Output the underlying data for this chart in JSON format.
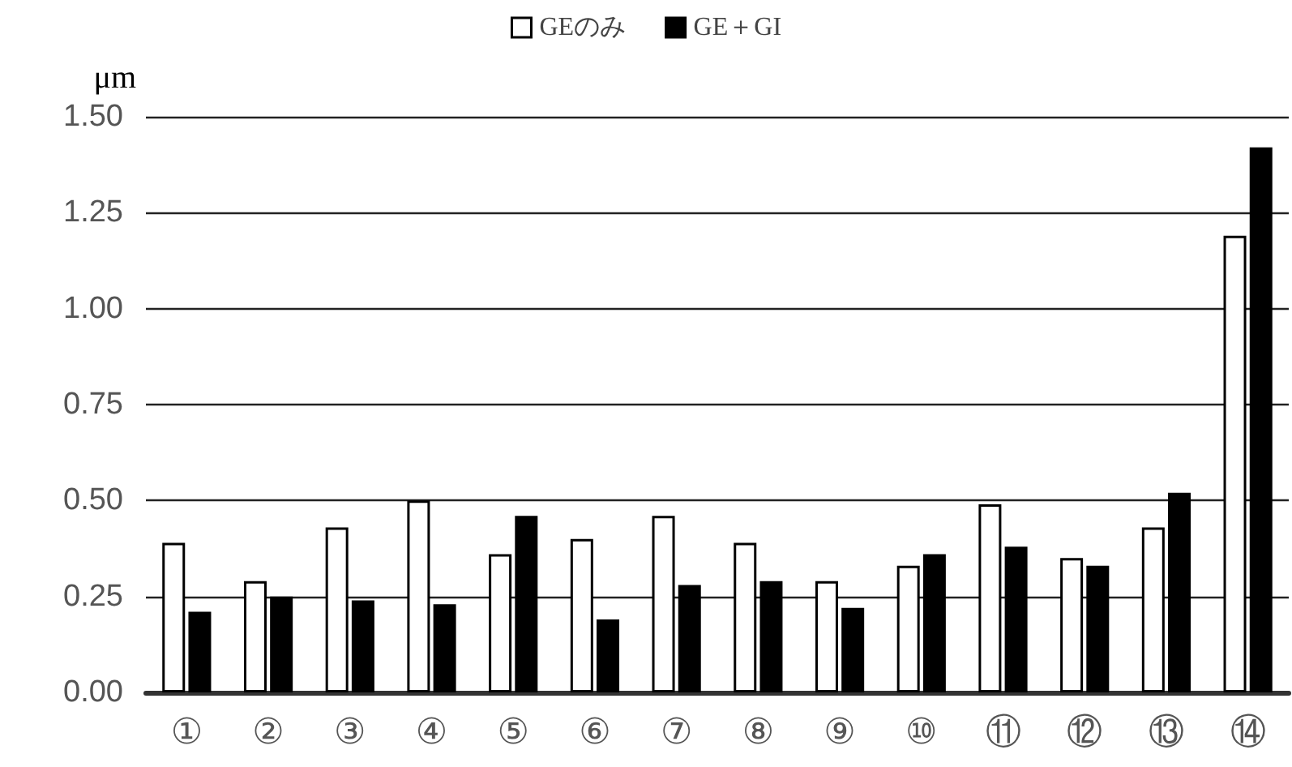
{
  "chart_data": {
    "type": "bar",
    "ylabel": "μm",
    "categories": [
      "①",
      "②",
      "③",
      "④",
      "⑤",
      "⑥",
      "⑦",
      "⑧",
      "⑨",
      "⑩",
      "⑪",
      "⑫",
      "⑬",
      "⑭"
    ],
    "series": [
      {
        "name": "GEのみ",
        "color": "#ffffff",
        "values": [
          0.39,
          0.29,
          0.43,
          0.5,
          0.36,
          0.4,
          0.46,
          0.39,
          0.29,
          0.33,
          0.49,
          0.35,
          0.43,
          1.19
        ]
      },
      {
        "name": "GE＋GI",
        "color": "#000000",
        "values": [
          0.21,
          0.25,
          0.24,
          0.23,
          0.46,
          0.19,
          0.28,
          0.29,
          0.22,
          0.36,
          0.38,
          0.33,
          0.52,
          1.42
        ]
      }
    ],
    "ylim": [
      0,
      1.5
    ],
    "yticks": [
      {
        "value": 0,
        "label": "0.00"
      },
      {
        "value": 0.25,
        "label": "0.25"
      },
      {
        "value": 0.5,
        "label": "0.50"
      },
      {
        "value": 0.75,
        "label": "0.75"
      },
      {
        "value": 1,
        "label": "1.00"
      },
      {
        "value": 1.25,
        "label": "1.25"
      },
      {
        "value": 1.5,
        "label": "1.50"
      }
    ],
    "grid": "y",
    "legend": "top"
  }
}
